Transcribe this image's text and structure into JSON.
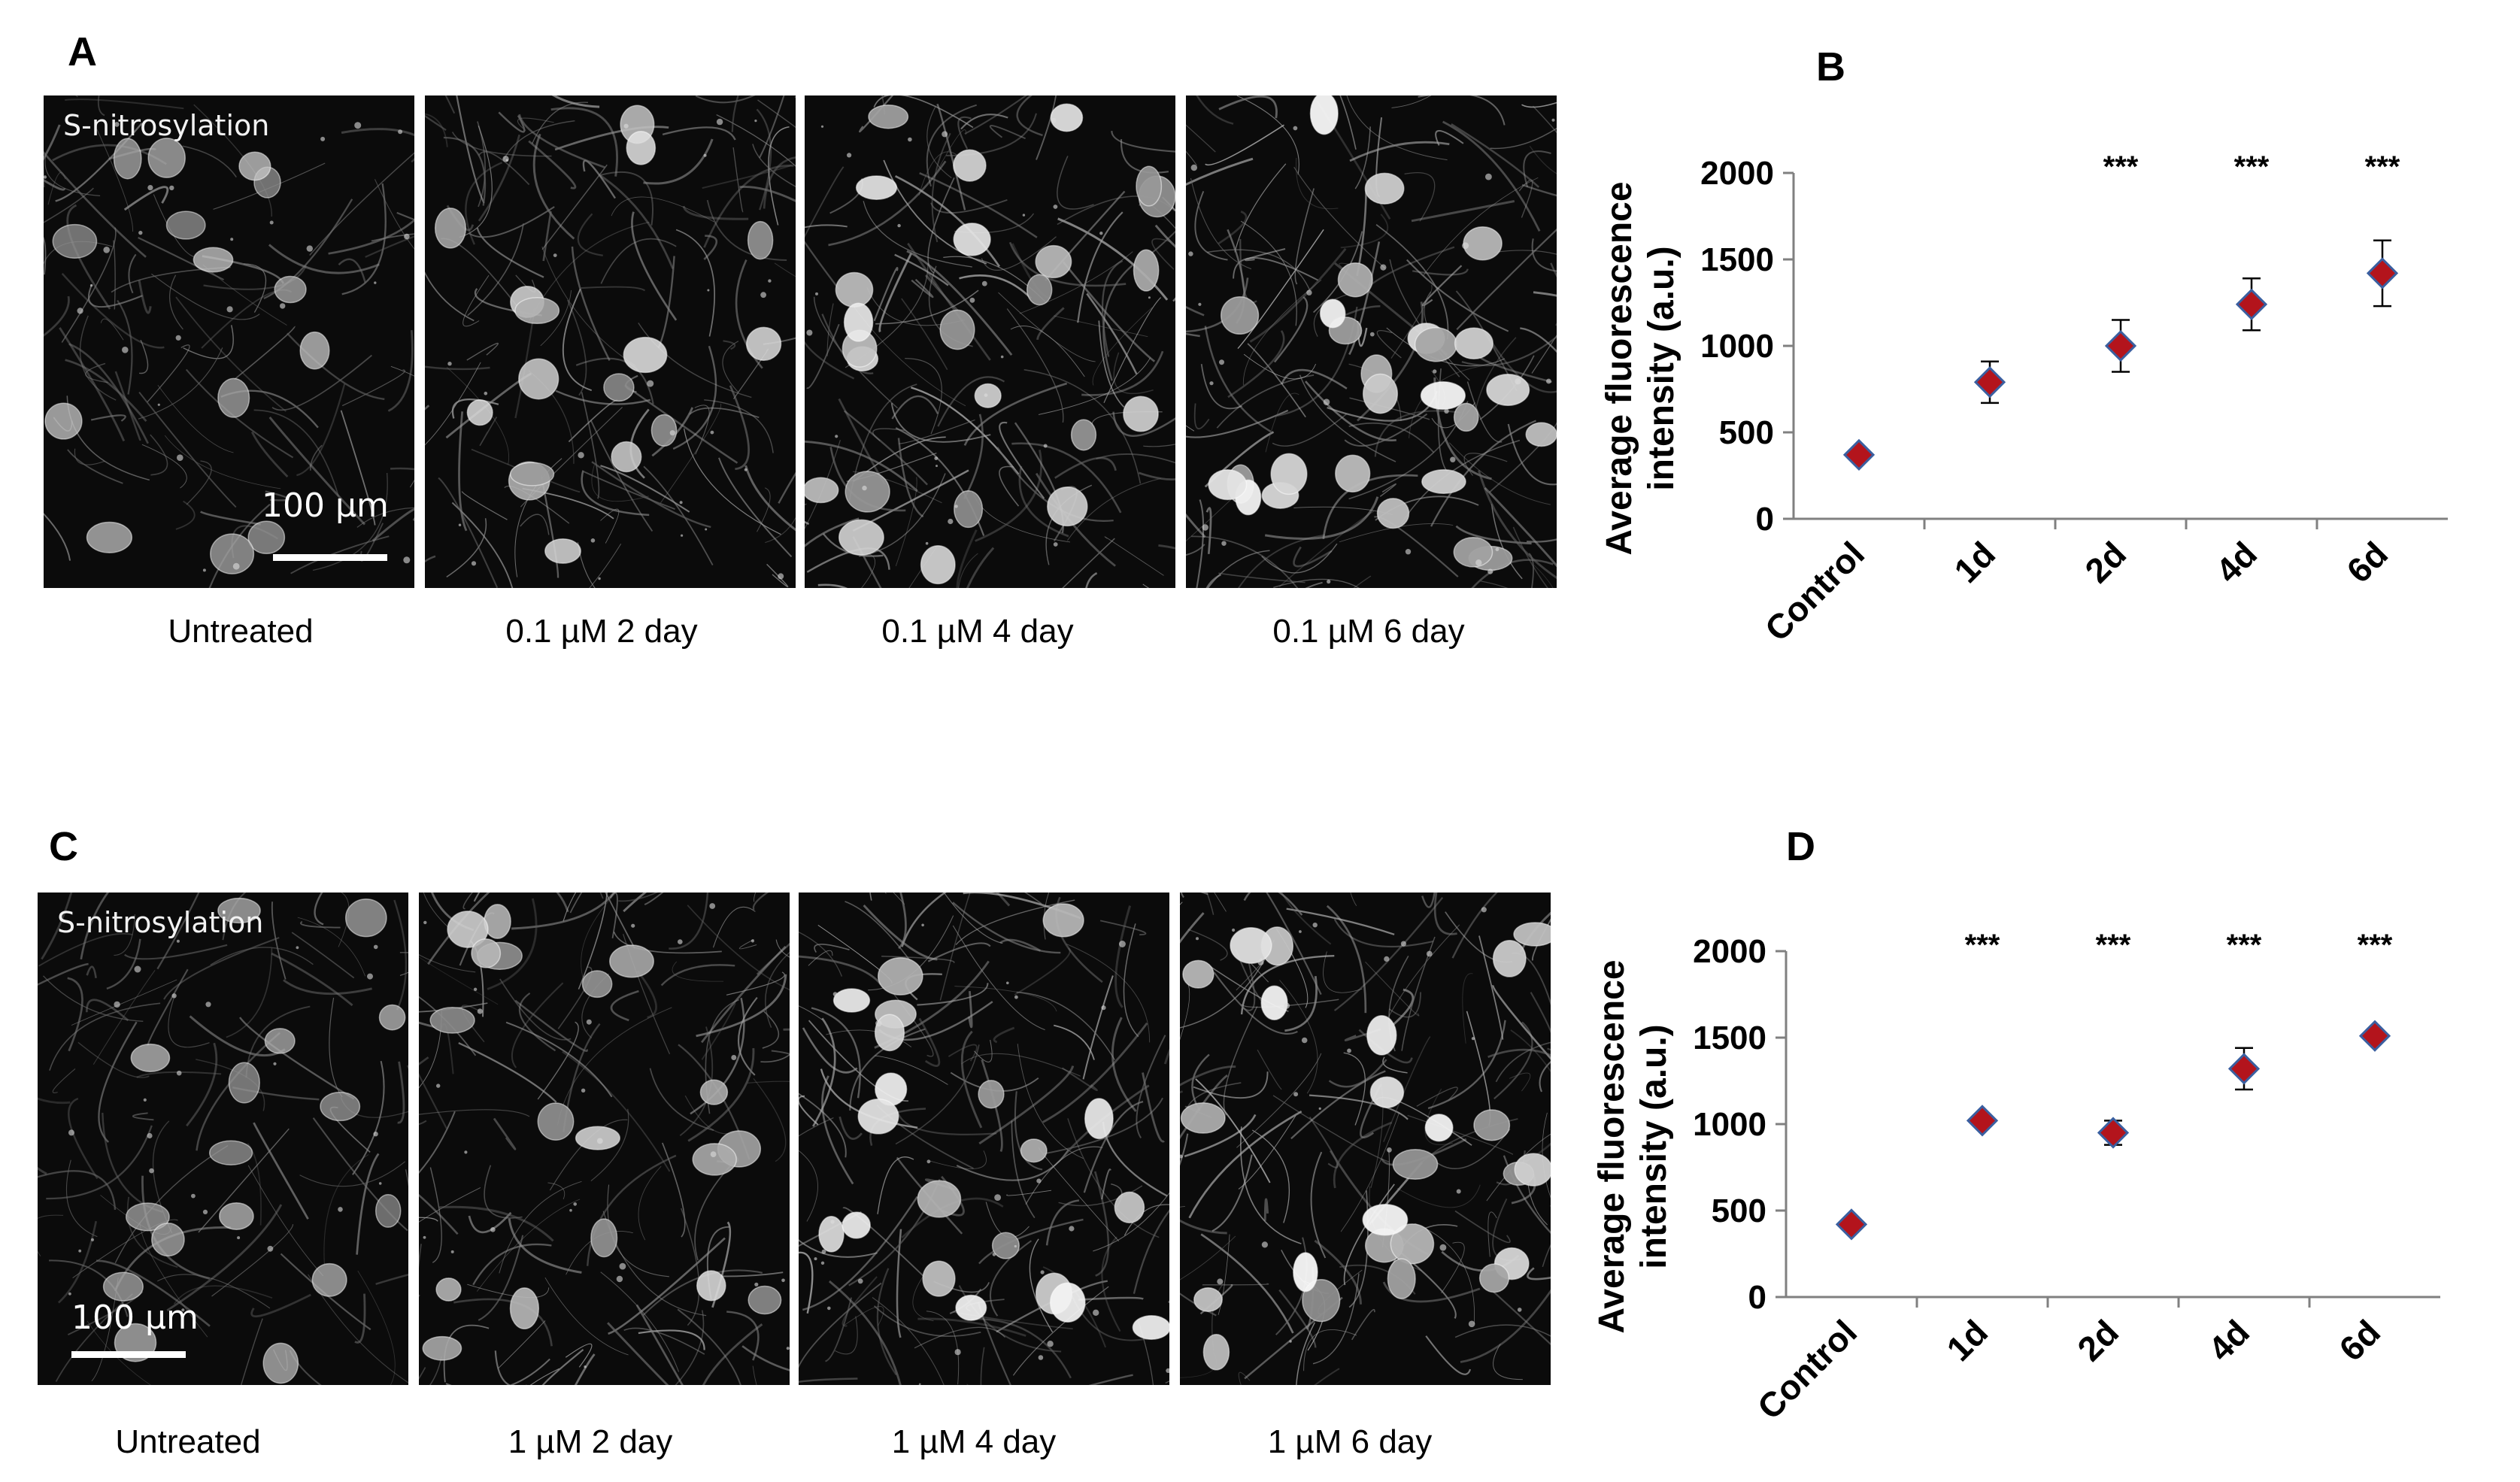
{
  "panel_letters": {
    "a": "A",
    "b": "B",
    "c": "C",
    "d": "D"
  },
  "row_a": {
    "stain_label": "S-nitrosylation",
    "scale_label": "100 µm",
    "captions": [
      "Untreated",
      "0.1 µM  2 day",
      "0.1 µM 4 day",
      "0.1 µM 6 day"
    ]
  },
  "row_c": {
    "stain_label": "S-nitrosylation",
    "scale_label": "100 µm",
    "captions": [
      "Untreated",
      "1 µM 2 day",
      "1 µM 4 day",
      "1 µM 6 day"
    ]
  },
  "colors": {
    "marker": "#b3141c",
    "marker_outline": "#3a5fa0",
    "axis": "#808080"
  },
  "chart_data": [
    {
      "panel": "B",
      "type": "scatter",
      "categories": [
        "Control",
        "1d",
        "2d",
        "4d",
        "6d"
      ],
      "values": [
        370,
        790,
        1000,
        1240,
        1420
      ],
      "errors": [
        0,
        120,
        150,
        150,
        190
      ],
      "significance": [
        "",
        "",
        "***",
        "***",
        "***"
      ],
      "ylabel": "Average fluorescence intensity (a.u.)",
      "yticks": [
        0,
        500,
        1000,
        1500,
        2000
      ],
      "ylim": [
        0,
        2000
      ],
      "grid": false,
      "legend": "none"
    },
    {
      "panel": "D",
      "type": "scatter",
      "categories": [
        "Control",
        "1d",
        "2d",
        "4d",
        "6d"
      ],
      "values": [
        420,
        1020,
        950,
        1320,
        1510
      ],
      "errors": [
        0,
        25,
        70,
        120,
        30
      ],
      "significance": [
        "",
        "***",
        "***",
        "***",
        "***"
      ],
      "ylabel": "Average fluorescence intensity (a.u.)",
      "yticks": [
        0,
        500,
        1000,
        1500,
        2000
      ],
      "ylim": [
        0,
        2000
      ],
      "grid": false,
      "legend": "none"
    }
  ]
}
